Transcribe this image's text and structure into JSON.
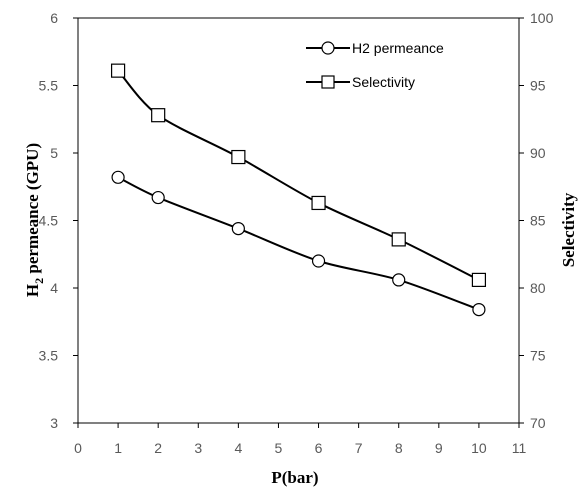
{
  "chart_data": {
    "type": "line",
    "xlabel": "P(bar)",
    "ylabel_left": {
      "main": "H",
      "sub": "2",
      "rest": " permeance (GPU)"
    },
    "ylabel_right": "Selectivity",
    "xlim": [
      0,
      11
    ],
    "xticks": [
      "0",
      "1",
      "2",
      "3",
      "4",
      "5",
      "6",
      "7",
      "8",
      "9",
      "10",
      "11"
    ],
    "ylim_left": [
      3,
      6
    ],
    "yticks_left": [
      "3",
      "3.5",
      "4",
      "4.5",
      "5",
      "5.5",
      "6"
    ],
    "ylim_right": [
      70,
      100
    ],
    "yticks_right": [
      "70",
      "75",
      "80",
      "85",
      "90",
      "95",
      "100"
    ],
    "grid": false,
    "legend_position": "top-right",
    "series": [
      {
        "name": "H2 permeance",
        "axis": "left",
        "marker": "circle",
        "x": [
          1,
          2,
          4,
          6,
          8,
          10
        ],
        "y": [
          4.82,
          4.67,
          4.44,
          4.2,
          4.06,
          3.84
        ]
      },
      {
        "name": "Selectivity",
        "axis": "right",
        "marker": "square",
        "x": [
          1,
          2,
          4,
          6,
          8,
          10
        ],
        "y": [
          96.1,
          92.8,
          89.7,
          86.3,
          83.6,
          80.6
        ]
      }
    ]
  }
}
